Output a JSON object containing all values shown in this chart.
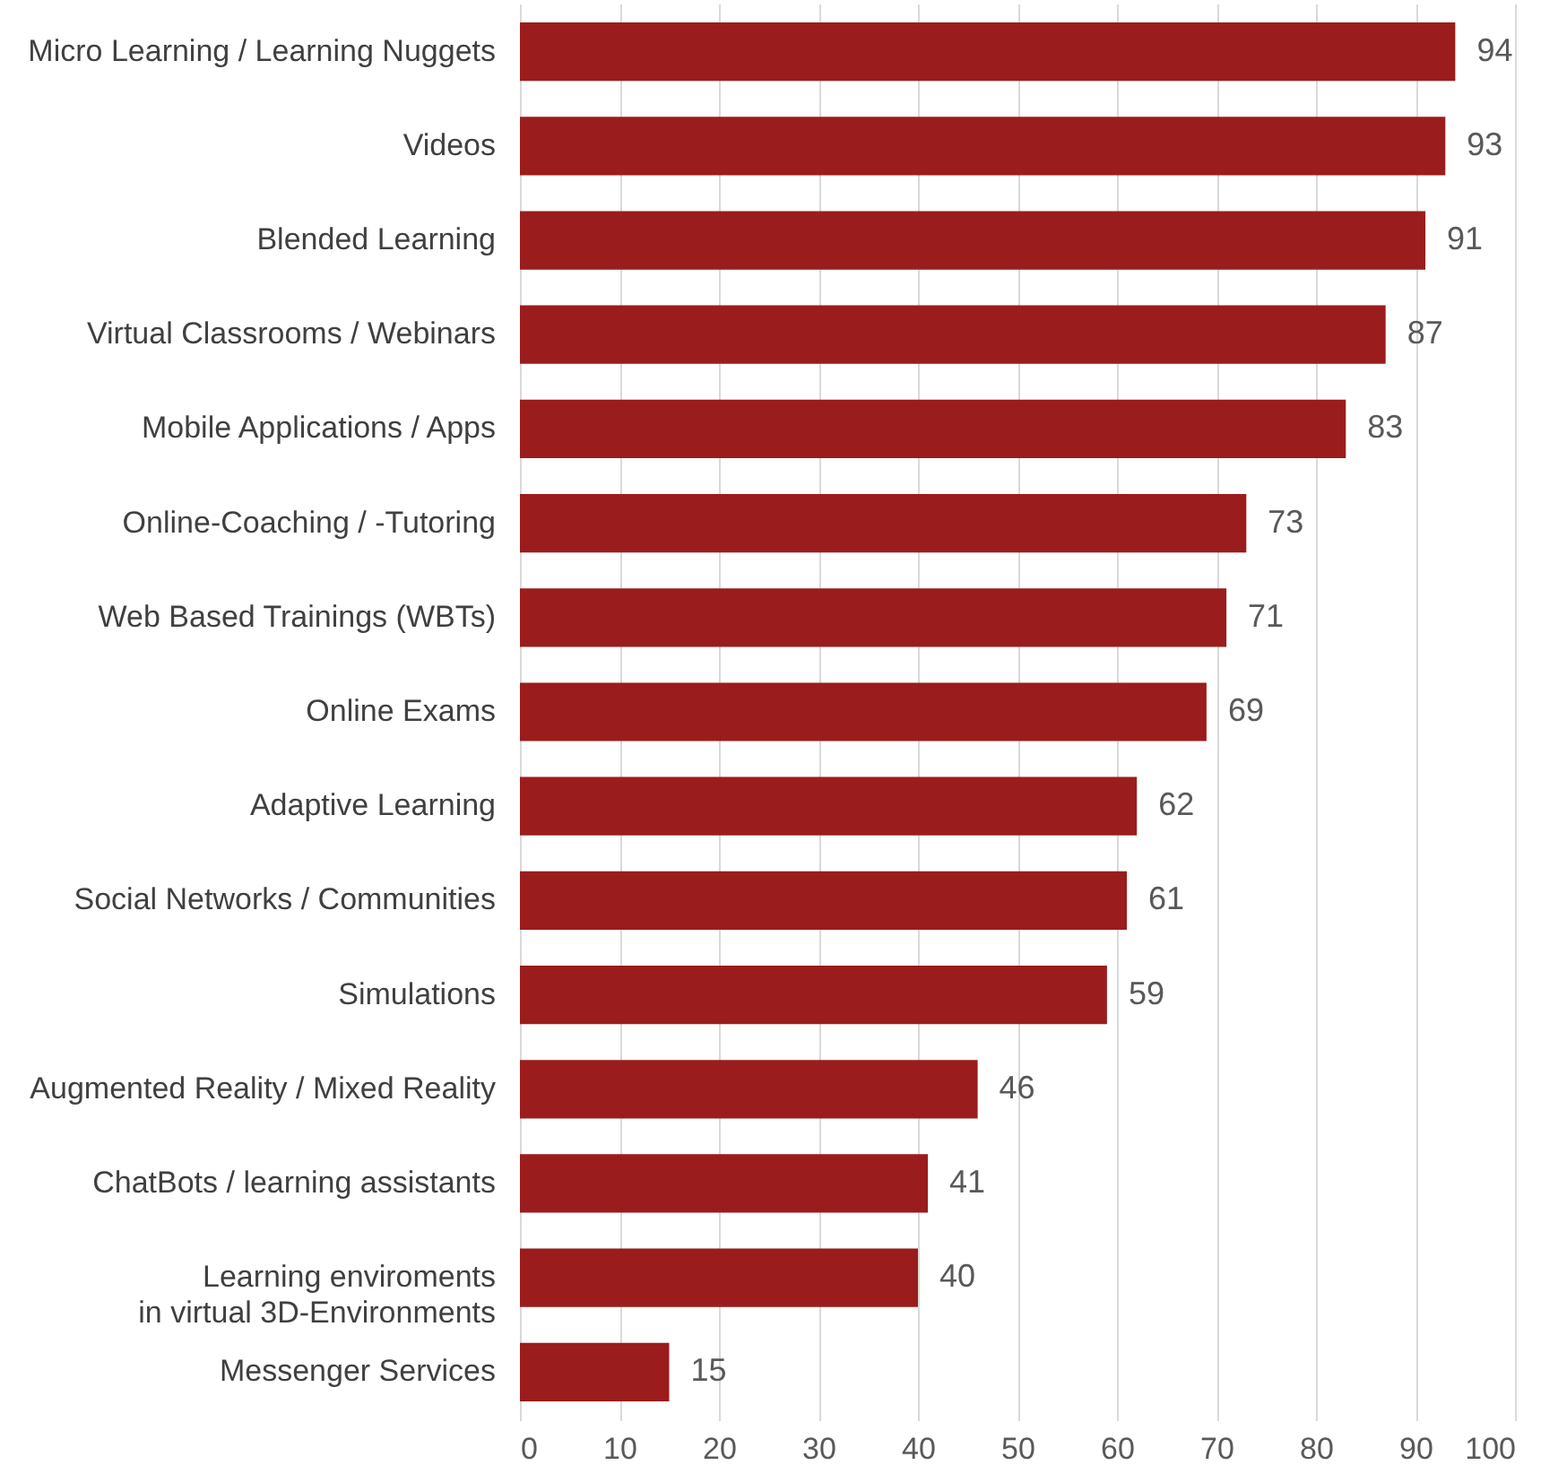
{
  "chart_data": {
    "type": "bar",
    "orientation": "horizontal",
    "categories": [
      "Micro Learning / Learning Nuggets",
      "Videos",
      "Blended Learning",
      "Virtual Classrooms / Webinars",
      "Mobile Applications / Apps",
      "Online-Coaching / -Tutoring",
      "Web Based Trainings (WBTs)",
      "Online Exams",
      "Adaptive Learning",
      "Social Networks / Communities",
      "Simulations",
      "Augmented Reality / Mixed Reality",
      "ChatBots / learning assistants",
      "Learning enviroments\nin virtual 3D-Environments",
      "Messenger Services"
    ],
    "values": [
      94,
      93,
      91,
      87,
      83,
      73,
      71,
      69,
      62,
      61,
      59,
      46,
      41,
      40,
      15
    ],
    "color": "#9b1c1c",
    "xlim": [
      0,
      100
    ],
    "xticks": [
      0,
      10,
      20,
      30,
      40,
      50,
      60,
      70,
      80,
      90,
      100
    ],
    "grid": "x",
    "data_labels": true
  }
}
